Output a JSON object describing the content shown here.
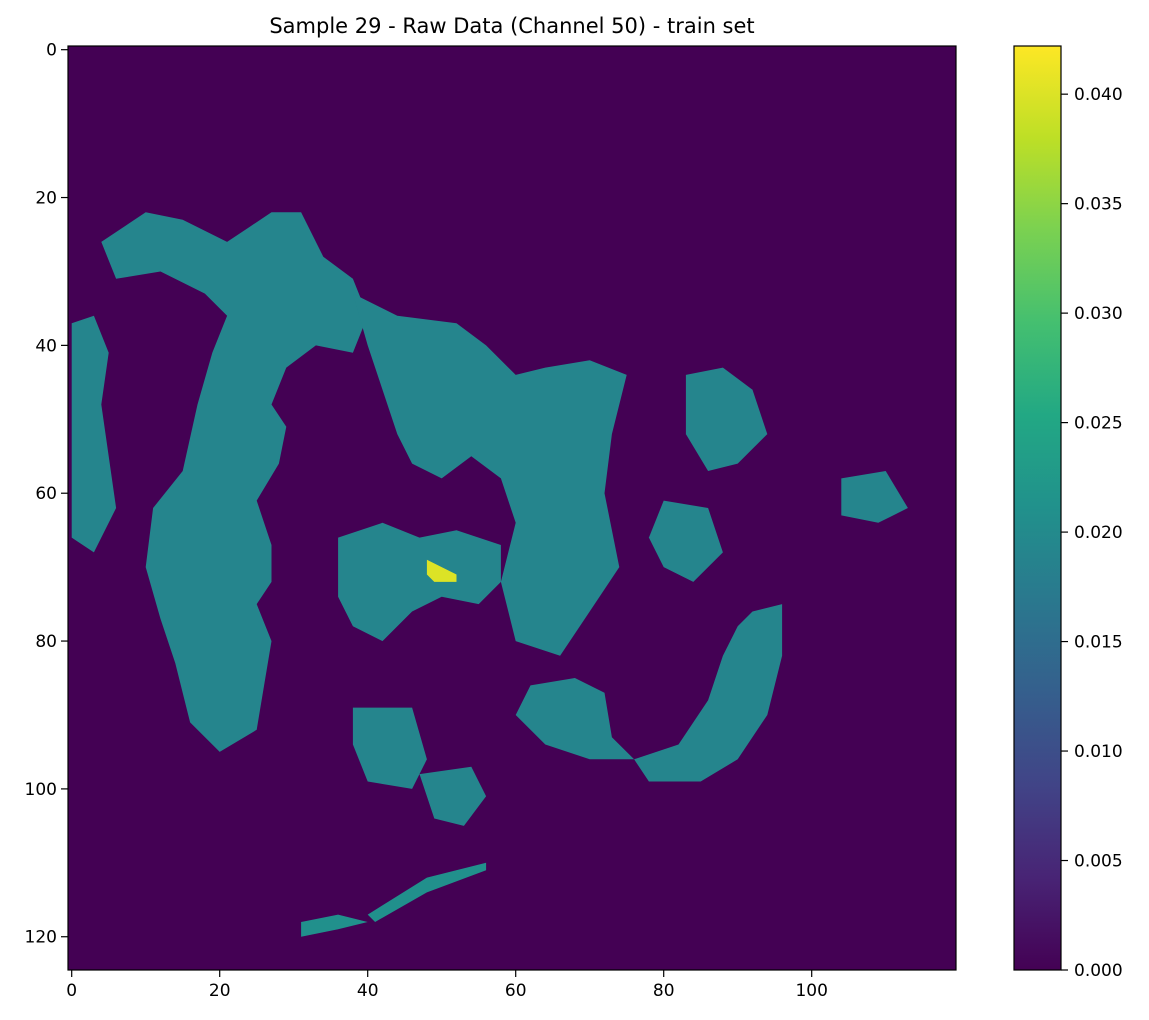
{
  "chart_data": {
    "type": "heatmap",
    "title": "Sample 29 - Raw Data (Channel 50) - train set",
    "xlabel": "",
    "ylabel": "",
    "grid": false,
    "xlim": [
      -0.5,
      119.5
    ],
    "ylim": [
      124.5,
      -0.5
    ],
    "x_ticks": [
      "0",
      "20",
      "40",
      "60",
      "80",
      "100"
    ],
    "y_ticks": [
      "0",
      "20",
      "40",
      "60",
      "80",
      "100",
      "120"
    ],
    "colorbar": {
      "colormap": "viridis",
      "range": [
        0.0,
        0.0422
      ],
      "ticks": [
        "0.000",
        "0.005",
        "0.010",
        "0.015",
        "0.020",
        "0.025",
        "0.030",
        "0.035",
        "0.040"
      ]
    },
    "grid_size": [
      120,
      125
    ],
    "background_value": 0.0,
    "regions": [
      {
        "name": "upper-left mass",
        "value": 0.019,
        "points": [
          [
            4,
            26
          ],
          [
            10,
            22
          ],
          [
            15,
            23
          ],
          [
            21,
            26
          ],
          [
            24,
            24
          ],
          [
            27,
            22
          ],
          [
            31,
            22
          ],
          [
            34,
            28
          ],
          [
            38,
            31
          ],
          [
            40,
            36
          ],
          [
            38,
            41
          ],
          [
            33,
            40
          ],
          [
            29,
            43
          ],
          [
            27,
            48
          ],
          [
            29,
            51
          ],
          [
            28,
            56
          ],
          [
            25,
            61
          ],
          [
            27,
            67
          ],
          [
            27,
            72
          ],
          [
            25,
            75
          ],
          [
            27,
            80
          ],
          [
            26,
            86
          ],
          [
            25,
            92
          ],
          [
            20,
            95
          ],
          [
            16,
            91
          ],
          [
            14,
            83
          ],
          [
            12,
            77
          ],
          [
            10,
            70
          ],
          [
            11,
            62
          ],
          [
            15,
            57
          ],
          [
            17,
            48
          ],
          [
            19,
            41
          ],
          [
            21,
            36
          ],
          [
            18,
            33
          ],
          [
            12,
            30
          ],
          [
            6,
            31
          ]
        ]
      },
      {
        "name": "left edge strip",
        "value": 0.019,
        "points": [
          [
            0,
            37
          ],
          [
            3,
            36
          ],
          [
            5,
            41
          ],
          [
            4,
            48
          ],
          [
            5,
            55
          ],
          [
            6,
            62
          ],
          [
            3,
            68
          ],
          [
            0,
            66
          ]
        ]
      },
      {
        "name": "upper-center mass",
        "value": 0.019,
        "points": [
          [
            38,
            33
          ],
          [
            44,
            36
          ],
          [
            52,
            37
          ],
          [
            56,
            40
          ],
          [
            60,
            44
          ],
          [
            64,
            43
          ],
          [
            70,
            42
          ],
          [
            75,
            44
          ],
          [
            73,
            52
          ],
          [
            72,
            60
          ],
          [
            74,
            70
          ],
          [
            70,
            76
          ],
          [
            66,
            82
          ],
          [
            60,
            80
          ],
          [
            58,
            72
          ],
          [
            60,
            64
          ],
          [
            58,
            58
          ],
          [
            54,
            55
          ],
          [
            50,
            58
          ],
          [
            46,
            56
          ],
          [
            44,
            52
          ],
          [
            42,
            46
          ],
          [
            40,
            40
          ]
        ]
      },
      {
        "name": "center lower-left blob",
        "value": 0.019,
        "points": [
          [
            36,
            66
          ],
          [
            42,
            64
          ],
          [
            47,
            66
          ],
          [
            52,
            65
          ],
          [
            58,
            67
          ],
          [
            58,
            72
          ],
          [
            55,
            75
          ],
          [
            50,
            74
          ],
          [
            46,
            76
          ],
          [
            42,
            80
          ],
          [
            38,
            78
          ],
          [
            36,
            74
          ]
        ]
      },
      {
        "name": "right-upper blob",
        "value": 0.019,
        "points": [
          [
            83,
            44
          ],
          [
            88,
            43
          ],
          [
            92,
            46
          ],
          [
            94,
            52
          ],
          [
            90,
            56
          ],
          [
            86,
            57
          ],
          [
            83,
            52
          ]
        ]
      },
      {
        "name": "right-middle blob",
        "value": 0.019,
        "points": [
          [
            80,
            61
          ],
          [
            86,
            62
          ],
          [
            88,
            68
          ],
          [
            84,
            72
          ],
          [
            80,
            70
          ],
          [
            78,
            66
          ]
        ]
      },
      {
        "name": "far-right blob",
        "value": 0.019,
        "points": [
          [
            104,
            58
          ],
          [
            110,
            57
          ],
          [
            113,
            62
          ],
          [
            109,
            64
          ],
          [
            104,
            63
          ]
        ]
      },
      {
        "name": "lower-right arc",
        "value": 0.019,
        "points": [
          [
            92,
            76
          ],
          [
            96,
            75
          ],
          [
            96,
            82
          ],
          [
            94,
            90
          ],
          [
            90,
            96
          ],
          [
            85,
            99
          ],
          [
            78,
            99
          ],
          [
            76,
            96
          ],
          [
            82,
            94
          ],
          [
            86,
            88
          ],
          [
            88,
            82
          ],
          [
            90,
            78
          ]
        ]
      },
      {
        "name": "lower-center mass",
        "value": 0.019,
        "points": [
          [
            62,
            86
          ],
          [
            68,
            85
          ],
          [
            72,
            87
          ],
          [
            73,
            93
          ],
          [
            76,
            96
          ],
          [
            70,
            96
          ],
          [
            64,
            94
          ],
          [
            60,
            90
          ]
        ]
      },
      {
        "name": "lower-left blob",
        "value": 0.019,
        "points": [
          [
            38,
            89
          ],
          [
            46,
            89
          ],
          [
            48,
            96
          ],
          [
            46,
            100
          ],
          [
            40,
            99
          ],
          [
            38,
            94
          ]
        ]
      },
      {
        "name": "lower-middle blob",
        "value": 0.019,
        "points": [
          [
            47,
            98
          ],
          [
            54,
            97
          ],
          [
            56,
            101
          ],
          [
            53,
            105
          ],
          [
            49,
            104
          ]
        ]
      },
      {
        "name": "diagonal streak bottom",
        "value": 0.021,
        "points": [
          [
            40,
            117
          ],
          [
            48,
            112
          ],
          [
            56,
            110
          ],
          [
            56,
            111
          ],
          [
            48,
            114
          ],
          [
            41,
            118
          ]
        ]
      },
      {
        "name": "bottom-left patch",
        "value": 0.021,
        "points": [
          [
            31,
            118
          ],
          [
            36,
            117
          ],
          [
            40,
            118
          ],
          [
            36,
            119
          ],
          [
            31,
            120
          ]
        ]
      },
      {
        "name": "hotspot center",
        "value": 0.04,
        "points": [
          [
            48,
            69
          ],
          [
            50,
            70
          ],
          [
            52,
            71
          ],
          [
            52,
            72
          ],
          [
            49,
            72
          ],
          [
            48,
            71
          ]
        ]
      }
    ]
  }
}
